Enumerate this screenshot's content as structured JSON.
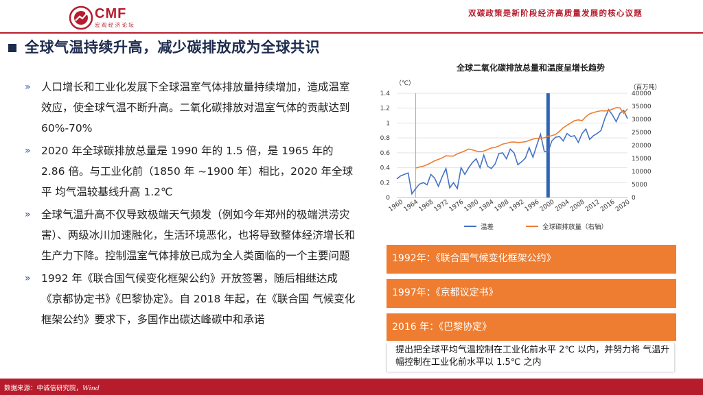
{
  "header": {
    "logo_text": "CMF",
    "logo_sub": "宏 观 经 济 论 坛",
    "title": "双碳政策是新阶段经济高质量发展的核心议题"
  },
  "section": {
    "title": "全球气温持续升高，减少碳排放成为全球共识"
  },
  "bullets": [
    {
      "marker": "»",
      "text": "人口增长和工业化发展下全球温室气体排放量持续增加，造成温室效应，使全球气温不断升高。二氧化碳排放对温室气体的贡献达到 60%-70%"
    },
    {
      "marker": "»",
      "text": "2020 年全球碳排放总量是 1990 年的 1.5 倍，是 1965 年的 2.86 倍。与工业化前（1850 年 ~1900 年）相比，2020 年全球平 均气温较基线升高 1.2℃"
    },
    {
      "marker": "»",
      "text": "全球气温升高不仅导致极端天气频发（例如今年郑州的极端洪涝灾害）、两级冰川加速融化，生活环境恶化，也将导致整体经济增长和生产力下降。控制温室气体排放已成为全人类面临的一个主要问题"
    },
    {
      "marker": "»",
      "text": "1992 年《联合国气候变化框架公约》开放签署，随后相继达成《京都协定书》《巴黎协定》。自 2018 年起，在《联合国 气候变化框架公约》要求下，多国作出碳达峰碳中和承诺"
    }
  ],
  "cards": [
    {
      "label": "1992年：《联合国气候变化框架公约》"
    },
    {
      "label": "1997年：《京都议定书》"
    },
    {
      "label": "2016 年：《巴黎协定》"
    }
  ],
  "note": "提出把全球平均气温控制在工业化前水平 2℃ 以内，并努力将 气温升幅控制在工业化前水平以 1.5℃ 之内",
  "footer": {
    "source": "数据来源：中诚信研究院",
    "wind": "Wind"
  },
  "colors": {
    "brand_red": "#b71c2c",
    "navy": "#1c2b4d",
    "temp_line": "#4472c4",
    "emission_line": "#ed7d31",
    "card_orange": "#ee7d31"
  },
  "chart_data": {
    "type": "line",
    "title": "全球二氧化碳排放总量和温度呈增长趋势",
    "y_left_unit": "（℃）",
    "y_right_unit": "（百万吨）",
    "x_ticks": [
      1960,
      1964,
      1968,
      1972,
      1976,
      1980,
      1984,
      1988,
      1992,
      1996,
      2000,
      2004,
      2008,
      2012,
      2016,
      2020
    ],
    "y_left_ticks": [
      0,
      0.2,
      0.4,
      0.6,
      0.8,
      1,
      1.2,
      1.4
    ],
    "y_right_ticks": [
      0,
      5000,
      10000,
      15000,
      20000,
      25000,
      30000,
      35000,
      40000
    ],
    "xlim": [
      1960,
      2021
    ],
    "ylim_left": [
      0,
      1.4
    ],
    "ylim_right": [
      0,
      40000
    ],
    "vlines": [
      1965,
      2000
    ],
    "series": [
      {
        "name": "温差",
        "axis": "left",
        "x": [
          1960,
          1961,
          1962,
          1963,
          1964,
          1965,
          1966,
          1967,
          1968,
          1969,
          1970,
          1971,
          1972,
          1973,
          1974,
          1975,
          1976,
          1977,
          1978,
          1979,
          1980,
          1981,
          1982,
          1983,
          1984,
          1985,
          1986,
          1987,
          1988,
          1989,
          1990,
          1991,
          1992,
          1993,
          1994,
          1995,
          1996,
          1997,
          1998,
          1999,
          2000,
          2001,
          2002,
          2003,
          2004,
          2005,
          2006,
          2007,
          2008,
          2009,
          2010,
          2011,
          2012,
          2013,
          2014,
          2015,
          2016,
          2017,
          2018,
          2019,
          2020,
          2021
        ],
        "values": [
          0.25,
          0.29,
          0.31,
          0.33,
          0.05,
          0.12,
          0.18,
          0.2,
          0.17,
          0.31,
          0.26,
          0.15,
          0.28,
          0.39,
          0.13,
          0.2,
          0.12,
          0.4,
          0.31,
          0.4,
          0.47,
          0.52,
          0.4,
          0.57,
          0.42,
          0.39,
          0.45,
          0.59,
          0.6,
          0.52,
          0.65,
          0.6,
          0.44,
          0.48,
          0.53,
          0.67,
          0.54,
          0.7,
          0.85,
          0.62,
          0.61,
          0.76,
          0.81,
          0.82,
          0.76,
          0.86,
          0.82,
          0.83,
          0.74,
          0.86,
          0.92,
          0.78,
          0.83,
          0.86,
          0.9,
          1.06,
          1.18,
          1.11,
          1.02,
          1.13,
          1.17,
          1.06
        ]
      },
      {
        "name": "全球碳排放量（右轴）",
        "axis": "right",
        "x": [
          1965,
          1966,
          1967,
          1968,
          1969,
          1970,
          1971,
          1972,
          1973,
          1974,
          1975,
          1976,
          1977,
          1978,
          1979,
          1980,
          1981,
          1982,
          1983,
          1984,
          1985,
          1986,
          1987,
          1988,
          1989,
          1990,
          1991,
          1992,
          1993,
          1994,
          1995,
          1996,
          1997,
          1998,
          1999,
          2000,
          2001,
          2002,
          2003,
          2004,
          2005,
          2006,
          2007,
          2008,
          2009,
          2010,
          2011,
          2012,
          2013,
          2014,
          2015,
          2016,
          2017,
          2018,
          2019,
          2020,
          2021
        ],
        "values": [
          11300,
          11700,
          12000,
          12600,
          13300,
          14100,
          14600,
          15200,
          16000,
          15900,
          15900,
          16800,
          17300,
          17900,
          18600,
          18300,
          17800,
          17600,
          17800,
          18400,
          19000,
          19200,
          19800,
          20500,
          20800,
          21200,
          21300,
          21100,
          21200,
          21400,
          21900,
          22400,
          22700,
          22700,
          22900,
          23500,
          23700,
          24200,
          25400,
          26800,
          27700,
          28600,
          29500,
          29800,
          29500,
          31000,
          32100,
          32600,
          33000,
          33300,
          33200,
          33400,
          33900,
          34500,
          34400,
          32300,
          34000
        ]
      }
    ]
  }
}
